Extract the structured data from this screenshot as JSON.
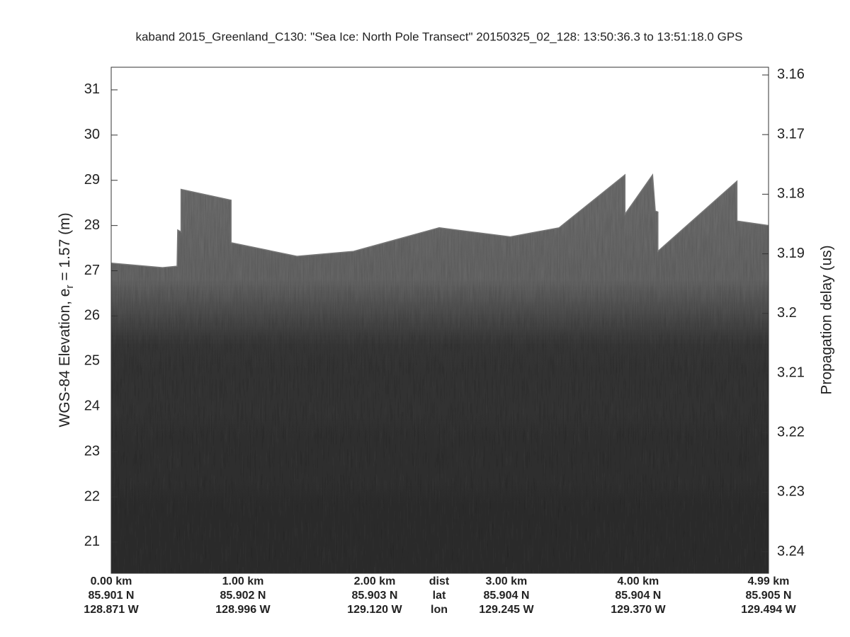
{
  "chart_data": {
    "type": "echogram",
    "title": "kaband 2015_Greenland_C130: \"Sea Ice: North Pole Transect\"  20150325_02_128: 13:50:36.3 to 13:51:18.0 GPS",
    "y_label": {
      "prefix": "WGS-84 Elevation, e",
      "subscript": "r",
      "suffix": " = 1.57 (m)"
    },
    "y2_label": "Propagation delay (us)",
    "xlim": [
      0,
      4.99
    ],
    "xticks": [
      {
        "value": 0,
        "label": "0.00 km"
      },
      {
        "value": 1,
        "label": "1.00 km"
      },
      {
        "value": 2,
        "label": "2.00 km"
      },
      {
        "value": 3,
        "label": "3.00 km"
      },
      {
        "value": 4,
        "label": "4.00 km"
      },
      {
        "value": 4.99,
        "label": "4.99 km"
      }
    ],
    "lat_labels": [
      "85.901 N",
      "85.902 N",
      "85.903 N",
      "85.904 N",
      "85.904 N",
      "85.905 N"
    ],
    "lon_labels": [
      "128.871 W",
      "128.996 W",
      "129.120 W",
      "129.245 W",
      "129.370 W",
      "129.494 W"
    ],
    "row_titles": [
      "dist",
      "lat",
      "lon"
    ],
    "ylim": [
      20.31,
      31.5
    ],
    "yticks": [
      21,
      22,
      23,
      24,
      25,
      26,
      27,
      28,
      29,
      30,
      31
    ],
    "y2lim": [
      3.2436,
      3.1587
    ],
    "y2ticks": [
      3.16,
      3.17,
      3.18,
      3.19,
      3.2,
      3.21,
      3.22,
      3.23,
      3.24
    ],
    "surface": {
      "x": [
        0,
        0.39,
        0.5,
        0.505,
        0.53,
        0.53,
        0.91,
        0.91,
        1.41,
        1.84,
        2.49,
        3.03,
        3.4,
        3.9,
        3.9,
        4.11,
        4.13,
        4.15,
        4.15,
        4.75,
        4.75,
        4.99
      ],
      "values": [
        27.17,
        27.07,
        27.1,
        27.9,
        27.86,
        28.8,
        28.56,
        27.62,
        27.32,
        27.43,
        27.95,
        27.75,
        27.95,
        29.12,
        28.25,
        29.12,
        28.32,
        28.3,
        27.43,
        28.98,
        28.1,
        28.0
      ],
      "color": "#777777"
    }
  }
}
